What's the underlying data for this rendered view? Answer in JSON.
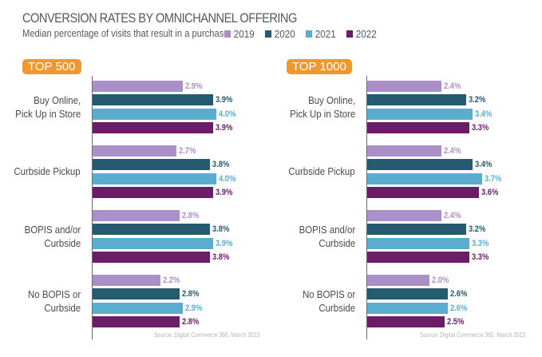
{
  "title": "CONVERSION RATES BY OMNICHANNEL OFFERING",
  "subtitle": "Median percentage of visits that result in a purchase",
  "legend": [
    {
      "label": "2019",
      "color": "#ab8fc8"
    },
    {
      "label": "2020",
      "color": "#265a70"
    },
    {
      "label": "2021",
      "color": "#5aadcf"
    },
    {
      "label": "2022",
      "color": "#6b1d68"
    }
  ],
  "chart_data": [
    {
      "type": "bar",
      "orientation": "horizontal",
      "title": "TOP 500",
      "categories": [
        "Buy Online,\nPick Up in Store",
        "Curbside Pickup",
        "BOPIS and/or\nCurbside",
        "No BOPIS or\nCurbside"
      ],
      "series": [
        {
          "name": "2019",
          "values": [
            2.9,
            2.7,
            2.8,
            2.2
          ]
        },
        {
          "name": "2020",
          "values": [
            3.9,
            3.8,
            3.8,
            2.8
          ]
        },
        {
          "name": "2021",
          "values": [
            4.0,
            4.0,
            3.9,
            2.9
          ]
        },
        {
          "name": "2022",
          "values": [
            3.9,
            3.9,
            3.8,
            2.8
          ]
        }
      ],
      "value_format": "%",
      "xlim": [
        0,
        4.0
      ],
      "grid": false,
      "source": "Source: Digital Commerce 360, March 2023"
    },
    {
      "type": "bar",
      "orientation": "horizontal",
      "title": "TOP 1000",
      "categories": [
        "Buy Online,\nPick Up in Store",
        "Curbside Pickup",
        "BOPIS and/or\nCurbside",
        "No BOPIS or\nCurbside"
      ],
      "series": [
        {
          "name": "2019",
          "values": [
            2.4,
            2.4,
            2.4,
            2.0
          ]
        },
        {
          "name": "2020",
          "values": [
            3.2,
            3.4,
            3.2,
            2.6
          ]
        },
        {
          "name": "2021",
          "values": [
            3.4,
            3.7,
            3.3,
            2.6
          ]
        },
        {
          "name": "2022",
          "values": [
            3.3,
            3.6,
            3.3,
            2.5
          ]
        }
      ],
      "value_format": "%",
      "xlim": [
        0,
        4.0
      ],
      "grid": false,
      "source": "Source: Digital Commerce 360, March 2023"
    }
  ]
}
